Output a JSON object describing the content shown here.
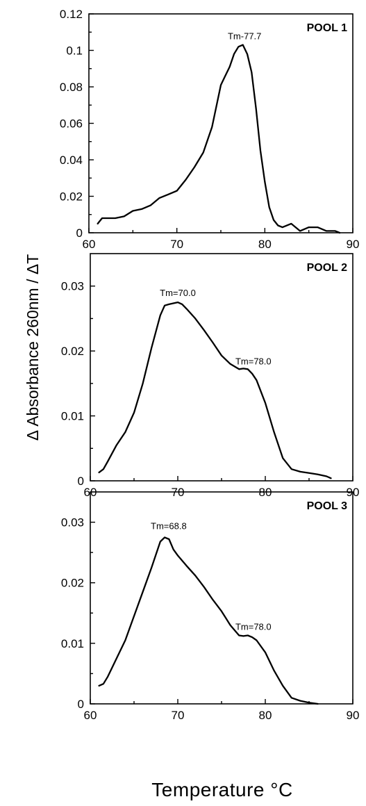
{
  "figure": {
    "ylabel": "Δ Absorbance 260nm / ΔT",
    "xlabel": "Temperature °C"
  },
  "chart_data": [
    {
      "type": "line",
      "title": "POOL 1",
      "xlim": [
        60,
        90
      ],
      "ylim": [
        0,
        0.12
      ],
      "x_ticks": [
        60,
        70,
        80,
        90
      ],
      "x_tick_labels": [
        "60",
        "70",
        "80",
        "90"
      ],
      "y_ticks": [
        0,
        0.02,
        0.04,
        0.06,
        0.08,
        0.1,
        0.12
      ],
      "y_tick_labels": [
        "0",
        "0.02",
        "0.04",
        "0.06",
        "0.08",
        "0.1",
        "0.12"
      ],
      "annotations": [
        {
          "text": "Tm-77.7",
          "x": 77.7,
          "y": 0.103
        }
      ],
      "series": [
        {
          "x": [
            61,
            61.5,
            62,
            63,
            64,
            65,
            66,
            67,
            68,
            69,
            70,
            71,
            72,
            73,
            74,
            75,
            75.5,
            76,
            76.5,
            77,
            77.5,
            78,
            78.5,
            79,
            79.5,
            80,
            80.5,
            81,
            81.5,
            82,
            83,
            84,
            85,
            86,
            87,
            88,
            88.5
          ],
          "y": [
            0.005,
            0.008,
            0.008,
            0.008,
            0.009,
            0.012,
            0.013,
            0.015,
            0.019,
            0.021,
            0.023,
            0.029,
            0.036,
            0.044,
            0.058,
            0.081,
            0.086,
            0.091,
            0.098,
            0.102,
            0.103,
            0.098,
            0.088,
            0.068,
            0.045,
            0.028,
            0.014,
            0.007,
            0.004,
            0.003,
            0.005,
            0.001,
            0.003,
            0.003,
            0.001,
            0.001,
            0
          ]
        }
      ]
    },
    {
      "type": "line",
      "title": "POOL 2",
      "xlim": [
        60,
        90
      ],
      "ylim": [
        0,
        0.035
      ],
      "x_ticks": [
        60,
        70,
        80,
        90
      ],
      "x_tick_labels": [
        "60",
        "70",
        "80",
        "90"
      ],
      "y_ticks": [
        0,
        0.01,
        0.02,
        0.03
      ],
      "y_tick_labels": [
        "0",
        "0.01",
        "0.02",
        "0.03"
      ],
      "annotations": [
        {
          "text": "Tm=70.0",
          "x": 70.0,
          "y": 0.0275
        },
        {
          "text": "Tm=78.0",
          "x": 78.0,
          "y": 0.0172
        }
      ],
      "series": [
        {
          "x": [
            61,
            61.5,
            62,
            63,
            64,
            65,
            66,
            67,
            68,
            68.5,
            69,
            70,
            70.5,
            71,
            72,
            73,
            74,
            75,
            76,
            77,
            77.5,
            78,
            78.5,
            79,
            80,
            81,
            82,
            83,
            84,
            85,
            86,
            87,
            87.5
          ],
          "y": [
            0.0013,
            0.0018,
            0.003,
            0.0055,
            0.0075,
            0.0105,
            0.015,
            0.0205,
            0.0255,
            0.027,
            0.0272,
            0.0275,
            0.0272,
            0.0265,
            0.025,
            0.0232,
            0.0213,
            0.0193,
            0.018,
            0.0172,
            0.0173,
            0.0172,
            0.0165,
            0.0155,
            0.012,
            0.0075,
            0.0035,
            0.0018,
            0.0014,
            0.0012,
            0.001,
            0.0007,
            0.0004
          ]
        }
      ]
    },
    {
      "type": "line",
      "title": "POOL 3",
      "xlim": [
        60,
        90
      ],
      "ylim": [
        0,
        0.035
      ],
      "x_ticks": [
        60,
        70,
        80,
        90
      ],
      "x_tick_labels": [
        "60",
        "70",
        "80",
        "90"
      ],
      "y_ticks": [
        0,
        0.01,
        0.02,
        0.03
      ],
      "y_tick_labels": [
        "0",
        "0.01",
        "0.02",
        "0.03"
      ],
      "annotations": [
        {
          "text": "Tm=68.8",
          "x": 68.8,
          "y": 0.0275
        },
        {
          "text": "Tm=78.0",
          "x": 78.0,
          "y": 0.0113
        }
      ],
      "series": [
        {
          "x": [
            61,
            61.5,
            62,
            63,
            64,
            65,
            66,
            67,
            68,
            68.5,
            69,
            69.5,
            70,
            71,
            72,
            73,
            74,
            75,
            76,
            77,
            77.5,
            78,
            78.5,
            79,
            80,
            81,
            82,
            83,
            84,
            85,
            86
          ],
          "y": [
            0.003,
            0.0033,
            0.0045,
            0.0075,
            0.0105,
            0.0145,
            0.0185,
            0.0225,
            0.0268,
            0.0275,
            0.0272,
            0.0255,
            0.0245,
            0.0228,
            0.0212,
            0.0193,
            0.0172,
            0.0153,
            0.013,
            0.0113,
            0.0112,
            0.0113,
            0.011,
            0.0105,
            0.0085,
            0.0055,
            0.003,
            0.001,
            0.0005,
            0.0002,
            0
          ]
        }
      ]
    }
  ]
}
